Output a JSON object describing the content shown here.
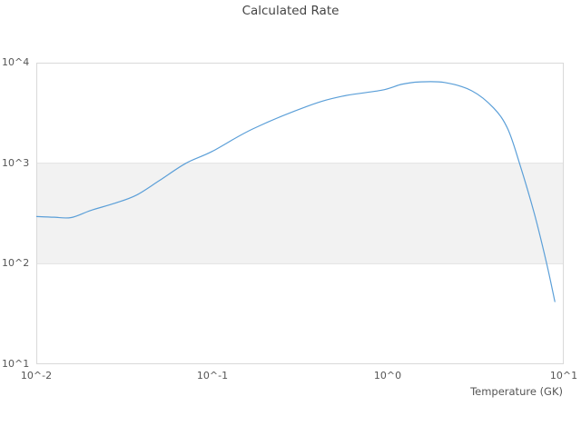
{
  "title": "Calculated Rate",
  "axes": {
    "x_label": "Temperature (GK)",
    "x_ticks": [
      {
        "label": "10^-2",
        "value": 0.01
      },
      {
        "label": "10^-1",
        "value": 0.1
      },
      {
        "label": "10^0",
        "value": 1
      },
      {
        "label": "10^1",
        "value": 10
      }
    ],
    "y_ticks": [
      {
        "label": "10^4",
        "value": 10000
      },
      {
        "label": "10^3",
        "value": 1000
      },
      {
        "label": "10^2",
        "value": 100
      },
      {
        "label": "10^1",
        "value": 10
      }
    ]
  },
  "colors": {
    "line": "#5b9fd8",
    "band_fill": "#f2f2f2",
    "band_edge": "#e3e3e3",
    "plot_border": "#d9d9d9",
    "tick_text": "#555555",
    "title_text": "#444444"
  },
  "chart_data": {
    "type": "line",
    "title": "Calculated Rate",
    "xlabel": "Temperature (GK)",
    "ylabel": "",
    "x_scale": "log",
    "y_scale": "log",
    "xlim": [
      0.01,
      10
    ],
    "ylim": [
      10,
      10000
    ],
    "grid": "off",
    "legend": "none",
    "shaded_band_y": [
      100,
      1000
    ],
    "series": [
      {
        "name": "Calculated Rate",
        "x": [
          0.01,
          0.0126,
          0.0158,
          0.0204,
          0.028,
          0.037,
          0.05,
          0.071,
          0.1,
          0.17,
          0.35,
          0.55,
          0.92,
          1.2,
          1.5,
          2.1,
          3.0,
          4.0,
          4.8,
          5.6,
          6.8,
          8.0,
          8.9
        ],
        "y": [
          295,
          290,
          288,
          339,
          400,
          480,
          670,
          1000,
          1310,
          2190,
          3700,
          4640,
          5320,
          6100,
          6430,
          6350,
          5250,
          3530,
          2200,
          1000,
          316,
          100,
          42
        ]
      }
    ]
  }
}
